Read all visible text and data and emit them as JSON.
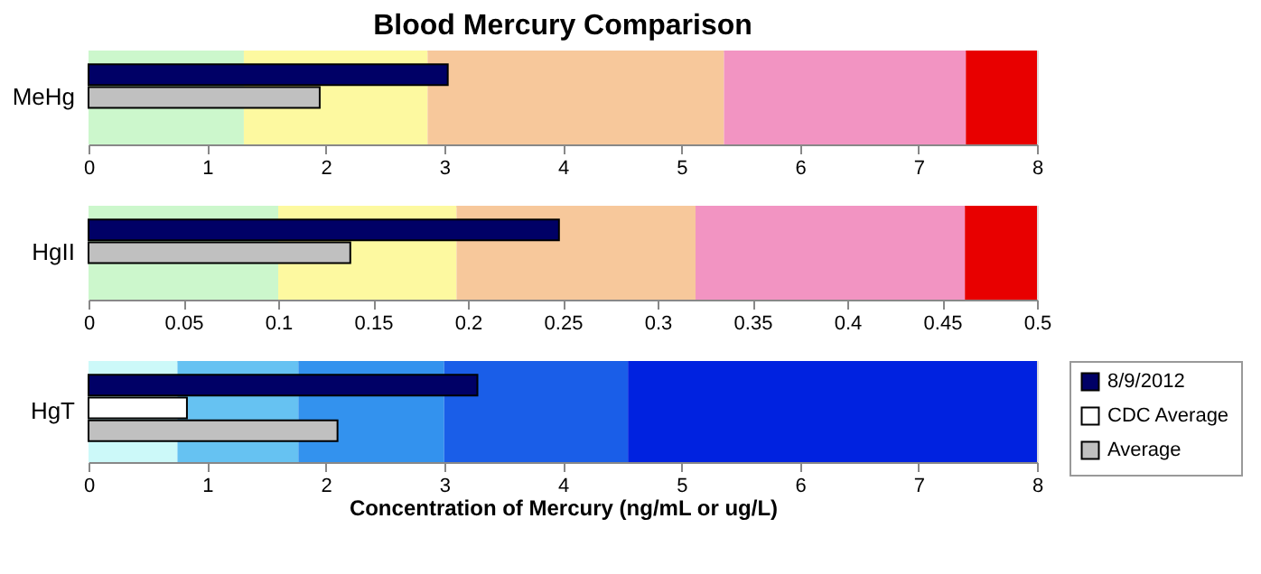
{
  "chart_data": [
    {
      "type": "bar",
      "orientation": "horizontal",
      "title": "Blood Mercury Comparison",
      "categories": [
        "MeHg"
      ],
      "xlim": [
        0,
        8
      ],
      "xticks": [
        0,
        1,
        2,
        3,
        4,
        5,
        6,
        7,
        8
      ],
      "series": [
        {
          "color": "#000066",
          "values": [
            3.03
          ]
        },
        {
          "color": "#c0c0c0",
          "values": [
            1.95
          ]
        }
      ],
      "bands": [
        {
          "axis": "x",
          "from": 0,
          "to": 1.31,
          "color": "#ccf7cc"
        },
        {
          "axis": "x",
          "from": 1.31,
          "to": 2.86,
          "color": "#fdf9a0"
        },
        {
          "axis": "x",
          "from": 2.86,
          "to": 5.36,
          "color": "#f7c89b"
        },
        {
          "axis": "x",
          "from": 5.36,
          "to": 7.4,
          "color": "#f294c2"
        },
        {
          "axis": "x",
          "from": 7.4,
          "to": 8,
          "color": "#e80000"
        }
      ]
    },
    {
      "type": "bar",
      "orientation": "horizontal",
      "categories": [
        "HgII"
      ],
      "xlim": [
        0,
        0.5
      ],
      "xticks": [
        0,
        0.05,
        0.1,
        0.15,
        0.2,
        0.25,
        0.3,
        0.35,
        0.4,
        0.45,
        0.5
      ],
      "series": [
        {
          "color": "#000066",
          "values": [
            0.248
          ]
        },
        {
          "color": "#c0c0c0",
          "values": [
            0.138
          ]
        }
      ],
      "bands": [
        {
          "axis": "x",
          "from": 0,
          "to": 0.1,
          "color": "#ccf7cc"
        },
        {
          "axis": "x",
          "from": 0.1,
          "to": 0.194,
          "color": "#fdf9a0"
        },
        {
          "axis": "x",
          "from": 0.194,
          "to": 0.32,
          "color": "#f7c89b"
        },
        {
          "axis": "x",
          "from": 0.32,
          "to": 0.462,
          "color": "#f294c2"
        },
        {
          "axis": "x",
          "from": 0.462,
          "to": 0.5,
          "color": "#e80000"
        }
      ]
    },
    {
      "type": "bar",
      "orientation": "horizontal",
      "categories": [
        "HgT"
      ],
      "xlim": [
        0,
        8
      ],
      "xticks": [
        0,
        1,
        2,
        3,
        4,
        5,
        6,
        7,
        8
      ],
      "xlabel": "Concentration of Mercury (ng/mL or ug/L)",
      "legend": "right",
      "series": [
        {
          "name": "8/9/2012",
          "color": "#000066",
          "values": [
            3.28
          ]
        },
        {
          "name": "CDC Average",
          "color": "#ffffff",
          "values": [
            0.83
          ]
        },
        {
          "name": "Average",
          "color": "#c0c0c0",
          "values": [
            2.1
          ]
        }
      ],
      "bands": [
        {
          "axis": "x",
          "from": 0,
          "to": 0.75,
          "color": "#ccf9f9"
        },
        {
          "axis": "x",
          "from": 0.75,
          "to": 1.77,
          "color": "#66c2f2"
        },
        {
          "axis": "x",
          "from": 1.77,
          "to": 3.0,
          "color": "#3392ee"
        },
        {
          "axis": "x",
          "from": 3.0,
          "to": 4.55,
          "color": "#1a5ee8"
        },
        {
          "axis": "x",
          "from": 4.55,
          "to": 8,
          "color": "#0022e0"
        }
      ]
    }
  ]
}
